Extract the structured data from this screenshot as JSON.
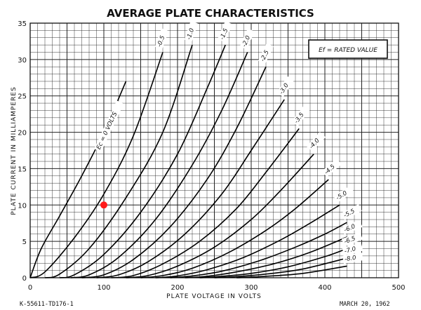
{
  "chart_data": {
    "type": "line",
    "title": "AVERAGE PLATE CHARACTERISTICS",
    "xlabel": "PLATE VOLTAGE IN VOLTS",
    "ylabel": "PLATE CURRENT IN MILLIAMPERES",
    "xlim": [
      0,
      500
    ],
    "ylim": [
      0,
      35
    ],
    "x_ticks": [
      "0",
      "100",
      "200",
      "300",
      "400",
      "500"
    ],
    "y_ticks": [
      "0",
      "5",
      "10",
      "15",
      "20",
      "25",
      "30",
      "35"
    ],
    "grid": true,
    "note": "Ef = RATED VALUE",
    "footer_left": "K-55611-TD176-1",
    "footer_right": "MARCH 20, 1962",
    "series": [
      {
        "name": "Ec = 0 VOLTS",
        "x": [
          0,
          15,
          40,
          70,
          100,
          130
        ],
        "y": [
          0,
          4,
          8.5,
          14,
          20,
          27
        ]
      },
      {
        "name": "-0.5",
        "x": [
          0,
          20,
          60,
          100,
          140,
          180
        ],
        "y": [
          0,
          0.8,
          5.5,
          11.5,
          19.5,
          31
        ]
      },
      {
        "name": "-1.0",
        "x": [
          20,
          40,
          80,
          130,
          180,
          220
        ],
        "y": [
          0,
          0.5,
          4,
          11,
          20,
          32
        ]
      },
      {
        "name": "-1.5",
        "x": [
          40,
          60,
          100,
          150,
          200,
          240,
          265
        ],
        "y": [
          0,
          0.4,
          3.2,
          9,
          17,
          26,
          32
        ]
      },
      {
        "name": "-2.0",
        "x": [
          55,
          80,
          120,
          170,
          220,
          260,
          295
        ],
        "y": [
          0,
          0.4,
          2.8,
          8,
          15.5,
          23,
          31
        ]
      },
      {
        "name": "-2.5",
        "x": [
          70,
          100,
          140,
          190,
          240,
          280,
          320
        ],
        "y": [
          0,
          0.4,
          2.5,
          7,
          13.5,
          20.5,
          29
        ]
      },
      {
        "name": "-3.0",
        "x": [
          90,
          120,
          160,
          210,
          260,
          300,
          345
        ],
        "y": [
          0,
          0.4,
          2.2,
          6,
          11.5,
          17.5,
          24.5
        ]
      },
      {
        "name": "-3.5",
        "x": [
          110,
          140,
          180,
          230,
          280,
          320,
          365
        ],
        "y": [
          0,
          0.3,
          1.9,
          5,
          9.5,
          14.5,
          20.5
        ]
      },
      {
        "name": "-4.0",
        "x": [
          130,
          160,
          200,
          250,
          300,
          340,
          385
        ],
        "y": [
          0,
          0.3,
          1.6,
          4.2,
          8,
          12,
          17
        ]
      },
      {
        "name": "-4.5",
        "x": [
          150,
          180,
          220,
          270,
          320,
          360,
          405
        ],
        "y": [
          0,
          0.3,
          1.3,
          3.5,
          6.5,
          9.5,
          13.5
        ]
      },
      {
        "name": "-5.0",
        "x": [
          170,
          200,
          240,
          290,
          340,
          380,
          420
        ],
        "y": [
          0,
          0.25,
          1.1,
          2.8,
          5.2,
          7.5,
          10
        ]
      },
      {
        "name": "-5.5",
        "x": [
          190,
          220,
          260,
          310,
          360,
          400,
          430
        ],
        "y": [
          0,
          0.25,
          0.9,
          2.3,
          4.2,
          6,
          7.6
        ]
      },
      {
        "name": "-6.0",
        "x": [
          210,
          240,
          280,
          330,
          380,
          430
        ],
        "y": [
          0,
          0.2,
          0.8,
          1.9,
          3.5,
          5.6
        ]
      },
      {
        "name": "-6.5",
        "x": [
          230,
          260,
          300,
          350,
          400,
          430
        ],
        "y": [
          0,
          0.2,
          0.6,
          1.5,
          2.9,
          4
        ]
      },
      {
        "name": "-7.0",
        "x": [
          250,
          280,
          320,
          370,
          430
        ],
        "y": [
          0,
          0.15,
          0.5,
          1.2,
          2.7
        ]
      },
      {
        "name": "-8.0",
        "x": [
          280,
          320,
          370,
          430
        ],
        "y": [
          0,
          0.2,
          0.6,
          1.6
        ]
      }
    ],
    "marker": {
      "x": 100,
      "y": 10,
      "color": "#ff1a1a"
    }
  }
}
